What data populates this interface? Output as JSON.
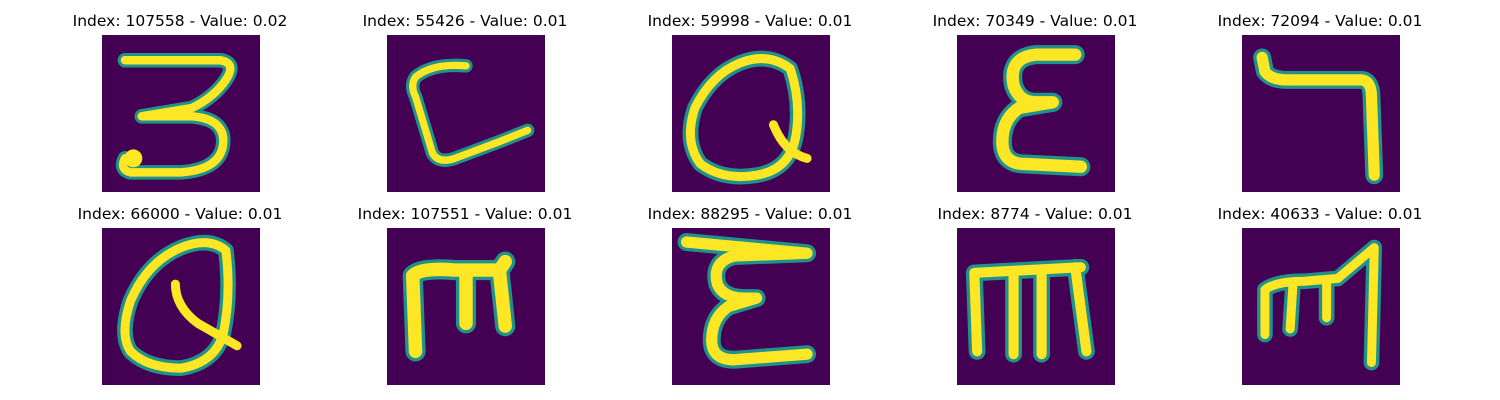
{
  "colors": {
    "background": "#440154",
    "stroke_mid": "#21918c",
    "stroke_bright": "#fde725"
  },
  "panels": [
    {
      "title": "Index: 107558 - Value: 0.02",
      "glyph_icon": "glyph-3"
    },
    {
      "title": "Index: 55426 - Value: 0.01",
      "glyph_icon": "glyph-c"
    },
    {
      "title": "Index: 59998 - Value: 0.01",
      "glyph_icon": "glyph-q"
    },
    {
      "title": "Index: 70349 - Value: 0.01",
      "glyph_icon": "glyph-epsilon"
    },
    {
      "title": "Index: 72094 - Value: 0.01",
      "glyph_icon": "glyph-hook"
    },
    {
      "title": "Index: 66000 - Value: 0.01",
      "glyph_icon": "glyph-q"
    },
    {
      "title": "Index: 107551 - Value: 0.01",
      "glyph_icon": "glyph-m"
    },
    {
      "title": "Index: 88295 - Value: 0.01",
      "glyph_icon": "glyph-epsilon"
    },
    {
      "title": "Index: 8774 - Value: 0.01",
      "glyph_icon": "glyph-m"
    },
    {
      "title": "Index: 40633 - Value: 0.01",
      "glyph_icon": "glyph-m"
    }
  ]
}
